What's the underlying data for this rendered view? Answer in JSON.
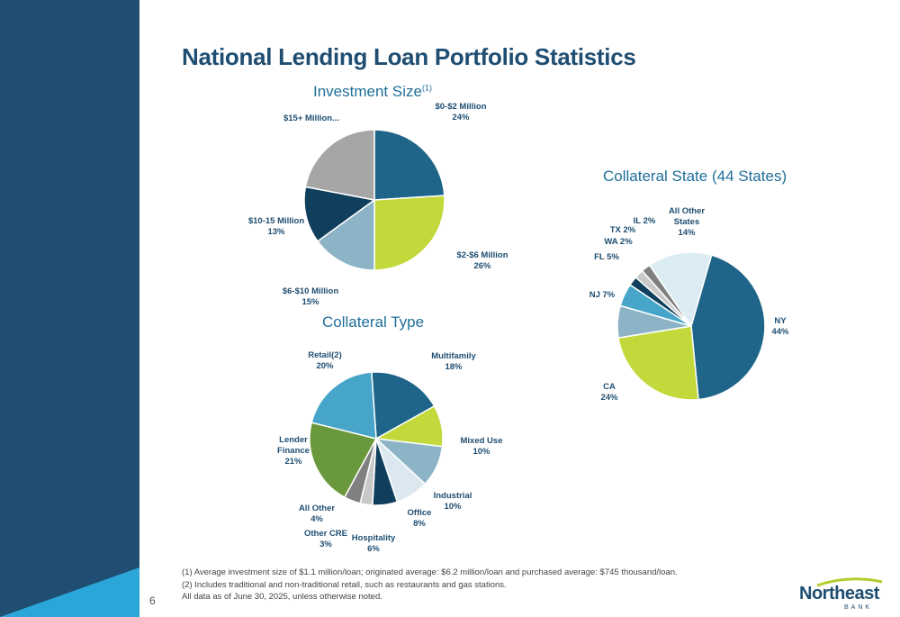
{
  "page": {
    "title": "National Lending Loan Portfolio Statistics",
    "page_number": "6",
    "footnotes": [
      "(1) Average investment size of $1.1 million/loan; originated average: $6.2 million/loan and purchased average: $745 thousand/loan.",
      "(2) Includes traditional and non-traditional retail, such as restaurants and gas stations.",
      "All data as of June 30, 2025, unless otherwise noted."
    ],
    "logo": {
      "name": "Northeast",
      "sub": "BANK"
    },
    "colors": {
      "sidebar": "#1f4e72",
      "accent": "#2aa6d8",
      "title": "#1f4e72"
    }
  },
  "chart_data": [
    {
      "type": "pie",
      "title": "Investment Size",
      "title_sup": "(1)",
      "slices": [
        {
          "label": "$0-$2 Million",
          "value_label": "24%",
          "value": 24,
          "color": "#1f6589"
        },
        {
          "label": "$2-$6 Million",
          "value_label": "26%",
          "value": 26,
          "color": "#c3d83a"
        },
        {
          "label": "$6-$10 Million",
          "value_label": "15%",
          "value": 15,
          "color": "#8cb4c6"
        },
        {
          "label": "$10-15 Million",
          "value_label": "13%",
          "value": 13,
          "color": "#0f3f5c"
        },
        {
          "label": "$15+ Million...",
          "value_label": "",
          "value": 22,
          "color": "#a6a6a6"
        }
      ]
    },
    {
      "type": "pie",
      "title": "Collateral Type",
      "slices": [
        {
          "label": "Multifamily",
          "value_label": "18%",
          "value": 18,
          "color": "#1f6589"
        },
        {
          "label": "Mixed Use",
          "value_label": "10%",
          "value": 10,
          "color": "#c3d83a"
        },
        {
          "label": "Industrial",
          "value_label": "10%",
          "value": 10,
          "color": "#8cb4c6"
        },
        {
          "label": "Office",
          "value_label": "8%",
          "value": 8,
          "color": "#dce8f0"
        },
        {
          "label": "Hospitality",
          "value_label": "6%",
          "value": 6,
          "color": "#0f3f5c"
        },
        {
          "label": "Other CRE",
          "value_label": "3%",
          "value": 3,
          "color": "#c8c8c8"
        },
        {
          "label": "All Other",
          "value_label": "4%",
          "value": 4,
          "color": "#808080"
        },
        {
          "label": "Lender Finance",
          "value_label": "21%",
          "value": 21,
          "color": "#6a983c"
        },
        {
          "label": "Retail(2)",
          "value_label": "20%",
          "value": 20,
          "color": "#46a5c9"
        }
      ]
    },
    {
      "type": "pie",
      "title": "Collateral State (44 States)",
      "slices": [
        {
          "label": "NY",
          "value_label": "44%",
          "value": 44,
          "color": "#1f6589"
        },
        {
          "label": "CA",
          "value_label": "24%",
          "value": 24,
          "color": "#c3d83a"
        },
        {
          "label": "NJ",
          "value_label": "7%",
          "value": 7,
          "color": "#8cb4c6"
        },
        {
          "label": "FL",
          "value_label": "5%",
          "value": 5,
          "color": "#46a5c9"
        },
        {
          "label": "WA",
          "value_label": "2%",
          "value": 2,
          "color": "#0f3f5c"
        },
        {
          "label": "TX",
          "value_label": "2%",
          "value": 2,
          "color": "#c8c8c8"
        },
        {
          "label": "IL",
          "value_label": "2%",
          "value": 2,
          "color": "#808080"
        },
        {
          "label": "All Other States",
          "value_label": "14%",
          "value": 14,
          "color": "#dcecf3"
        }
      ]
    }
  ]
}
